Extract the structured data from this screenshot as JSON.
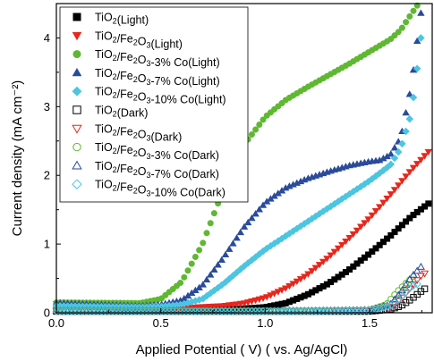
{
  "chart_data": {
    "type": "scatter",
    "xlabel": "Applied Potential ( V) ( vs. Ag/AgCl)",
    "ylabel": "Current density (mA cm⁻²)",
    "xlim": [
      0.0,
      1.8
    ],
    "ylim": [
      0.0,
      4.5
    ],
    "xticks": [
      "0.0",
      "0.5",
      "1.0",
      "1.5"
    ],
    "yticks": [
      "0",
      "1",
      "2",
      "3",
      "4"
    ],
    "legend_position": "top-left",
    "series": [
      {
        "name": "TiO2(Light)",
        "label_parts": [
          "TiO",
          "2",
          "(Light)"
        ],
        "marker": "square",
        "filled": true,
        "color": "#000000",
        "points": [
          [
            0.0,
            0.12
          ],
          [
            0.4,
            0.06
          ],
          [
            0.6,
            0.05
          ],
          [
            0.8,
            0.05
          ],
          [
            0.9,
            0.06
          ],
          [
            1.0,
            0.08
          ],
          [
            1.1,
            0.14
          ],
          [
            1.2,
            0.26
          ],
          [
            1.3,
            0.42
          ],
          [
            1.4,
            0.62
          ],
          [
            1.5,
            0.86
          ],
          [
            1.6,
            1.12
          ],
          [
            1.7,
            1.4
          ],
          [
            1.8,
            1.63
          ]
        ]
      },
      {
        "name": "TiO2/Fe2O3(Light)",
        "label_parts": [
          "TiO",
          "2",
          "/Fe",
          "2",
          "O",
          "3",
          "(Light)"
        ],
        "marker": "triangle-down",
        "filled": true,
        "color": "#e8261c",
        "points": [
          [
            0.0,
            0.13
          ],
          [
            0.4,
            0.08
          ],
          [
            0.6,
            0.07
          ],
          [
            0.8,
            0.1
          ],
          [
            0.9,
            0.14
          ],
          [
            1.0,
            0.22
          ],
          [
            1.1,
            0.36
          ],
          [
            1.2,
            0.55
          ],
          [
            1.3,
            0.8
          ],
          [
            1.4,
            1.08
          ],
          [
            1.5,
            1.38
          ],
          [
            1.6,
            1.72
          ],
          [
            1.7,
            2.08
          ],
          [
            1.8,
            2.4
          ]
        ]
      },
      {
        "name": "TiO2/Fe2O3-3% Co(Light)",
        "label_parts": [
          "TiO",
          "2",
          "/Fe",
          "2",
          "O",
          "3",
          "-3% Co(Light)"
        ],
        "marker": "circle",
        "filled": true,
        "color": "#5fb832",
        "points": [
          [
            0.0,
            0.15
          ],
          [
            0.4,
            0.14
          ],
          [
            0.5,
            0.2
          ],
          [
            0.6,
            0.45
          ],
          [
            0.7,
            1.0
          ],
          [
            0.8,
            1.8
          ],
          [
            0.9,
            2.45
          ],
          [
            1.0,
            2.85
          ],
          [
            1.1,
            3.1
          ],
          [
            1.2,
            3.28
          ],
          [
            1.3,
            3.45
          ],
          [
            1.4,
            3.62
          ],
          [
            1.5,
            3.8
          ],
          [
            1.6,
            3.98
          ],
          [
            1.65,
            4.12
          ],
          [
            1.7,
            4.35
          ],
          [
            1.73,
            4.48
          ]
        ]
      },
      {
        "name": "TiO2/Fe2O3-7% Co(Light)",
        "label_parts": [
          "TiO",
          "2",
          "/Fe",
          "2",
          "O",
          "3",
          "-7% Co(Light)"
        ],
        "marker": "triangle-up",
        "filled": true,
        "color": "#2a4b9b",
        "points": [
          [
            0.0,
            0.14
          ],
          [
            0.4,
            0.1
          ],
          [
            0.5,
            0.12
          ],
          [
            0.6,
            0.18
          ],
          [
            0.7,
            0.4
          ],
          [
            0.8,
            0.8
          ],
          [
            0.9,
            1.25
          ],
          [
            1.0,
            1.6
          ],
          [
            1.1,
            1.82
          ],
          [
            1.2,
            1.95
          ],
          [
            1.3,
            2.05
          ],
          [
            1.4,
            2.14
          ],
          [
            1.5,
            2.2
          ],
          [
            1.55,
            2.22
          ],
          [
            1.6,
            2.3
          ],
          [
            1.65,
            2.55
          ],
          [
            1.7,
            3.3
          ],
          [
            1.73,
            4.0
          ],
          [
            1.75,
            4.45
          ]
        ]
      },
      {
        "name": "TiO2/Fe2O3-10% Co(Light)",
        "label_parts": [
          "TiO",
          "2",
          "/Fe",
          "2",
          "O",
          "3",
          "-10% Co(Light)"
        ],
        "marker": "diamond",
        "filled": true,
        "color": "#4cc5e0",
        "points": [
          [
            0.0,
            0.1
          ],
          [
            0.4,
            0.08
          ],
          [
            0.5,
            0.09
          ],
          [
            0.6,
            0.12
          ],
          [
            0.7,
            0.2
          ],
          [
            0.8,
            0.42
          ],
          [
            0.9,
            0.68
          ],
          [
            1.0,
            0.92
          ],
          [
            1.1,
            1.12
          ],
          [
            1.2,
            1.32
          ],
          [
            1.3,
            1.52
          ],
          [
            1.4,
            1.72
          ],
          [
            1.5,
            1.92
          ],
          [
            1.6,
            2.15
          ],
          [
            1.65,
            2.4
          ],
          [
            1.7,
            2.9
          ],
          [
            1.73,
            3.6
          ],
          [
            1.75,
            4.1
          ]
        ]
      },
      {
        "name": "TiO2(Dark)",
        "label_parts": [
          "TiO",
          "2",
          "(Dark)"
        ],
        "marker": "square",
        "filled": false,
        "color": "#000000",
        "points": [
          [
            0.0,
            0.02
          ],
          [
            0.4,
            0.02
          ],
          [
            0.8,
            0.02
          ],
          [
            1.2,
            0.02
          ],
          [
            1.5,
            0.02
          ],
          [
            1.6,
            0.05
          ],
          [
            1.65,
            0.1
          ],
          [
            1.7,
            0.2
          ],
          [
            1.75,
            0.32
          ],
          [
            1.78,
            0.38
          ]
        ]
      },
      {
        "name": "TiO2/Fe2O3(Dark)",
        "label_parts": [
          "TiO",
          "2",
          "/Fe",
          "2",
          "O",
          "3",
          "(Dark)"
        ],
        "marker": "triangle-down",
        "filled": false,
        "color": "#e8261c",
        "points": [
          [
            0.0,
            0.03
          ],
          [
            0.4,
            0.03
          ],
          [
            0.8,
            0.03
          ],
          [
            1.2,
            0.03
          ],
          [
            1.5,
            0.03
          ],
          [
            1.6,
            0.08
          ],
          [
            1.65,
            0.2
          ],
          [
            1.7,
            0.38
          ],
          [
            1.75,
            0.55
          ],
          [
            1.78,
            0.6
          ]
        ]
      },
      {
        "name": "TiO2/Fe2O3-3% Co(Dark)",
        "label_parts": [
          "TiO",
          "2",
          "/Fe",
          "2",
          "O",
          "3",
          "-3% Co(Dark)"
        ],
        "marker": "circle",
        "filled": false,
        "color": "#5fb832",
        "points": [
          [
            0.0,
            0.03
          ],
          [
            0.4,
            0.03
          ],
          [
            0.8,
            0.03
          ],
          [
            1.2,
            0.03
          ],
          [
            1.5,
            0.04
          ],
          [
            1.58,
            0.12
          ],
          [
            1.63,
            0.3
          ],
          [
            1.68,
            0.45
          ],
          [
            1.72,
            0.55
          ]
        ]
      },
      {
        "name": "TiO2/Fe2O3-7% Co(Dark)",
        "label_parts": [
          "TiO",
          "2",
          "/Fe",
          "2",
          "O",
          "3",
          "-7% Co(Dark)"
        ],
        "marker": "triangle-up",
        "filled": false,
        "color": "#2a4b9b",
        "points": [
          [
            0.0,
            0.03
          ],
          [
            0.4,
            0.03
          ],
          [
            0.8,
            0.03
          ],
          [
            1.2,
            0.03
          ],
          [
            1.5,
            0.04
          ],
          [
            1.6,
            0.12
          ],
          [
            1.65,
            0.3
          ],
          [
            1.7,
            0.52
          ],
          [
            1.75,
            0.68
          ]
        ]
      },
      {
        "name": "TiO2/Fe2O3-10% Co(Dark)",
        "label_parts": [
          "TiO",
          "2",
          "/Fe",
          "2",
          "O",
          "3",
          "-10% Co(Dark)"
        ],
        "marker": "diamond",
        "filled": false,
        "color": "#4cc5e0",
        "points": [
          [
            0.0,
            0.02
          ],
          [
            0.4,
            0.02
          ],
          [
            0.8,
            0.02
          ],
          [
            1.2,
            0.02
          ],
          [
            1.5,
            0.03
          ],
          [
            1.6,
            0.1
          ],
          [
            1.65,
            0.22
          ],
          [
            1.7,
            0.38
          ],
          [
            1.73,
            0.42
          ]
        ]
      }
    ]
  }
}
